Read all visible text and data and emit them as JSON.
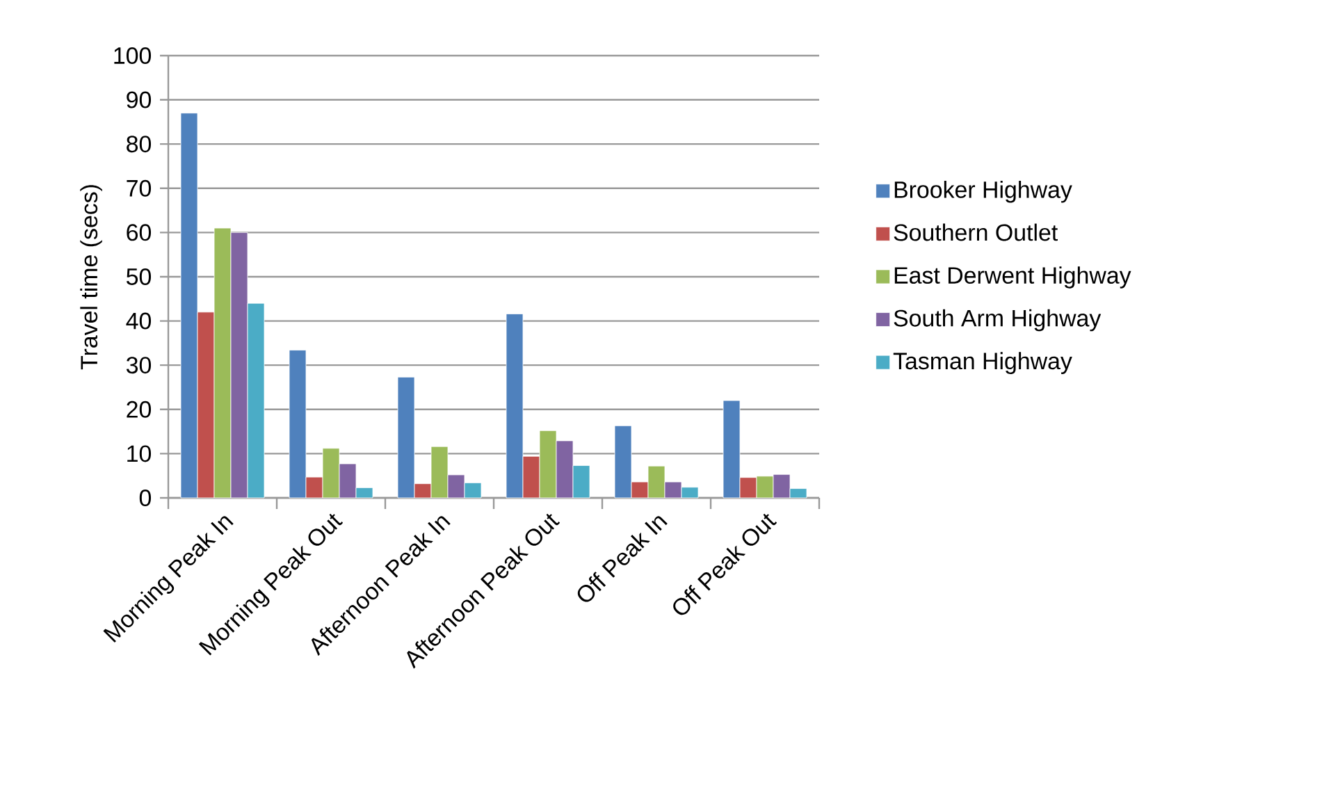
{
  "chart_data": {
    "type": "bar",
    "ylabel": "Travel time (secs)",
    "categories": [
      "Morning Peak In",
      "Morning Peak Out",
      "Afternoon Peak In",
      "Afternoon Peak Out",
      "Off Peak In",
      "Off Peak Out"
    ],
    "series": [
      {
        "name": "Brooker Highway",
        "color": "#4f81bd",
        "values": [
          87,
          33.4,
          27.3,
          41.6,
          16.3,
          22.0
        ]
      },
      {
        "name": "Southern Outlet",
        "color": "#c0504d",
        "values": [
          42,
          4.7,
          3.2,
          9.4,
          3.6,
          4.6
        ]
      },
      {
        "name": "East  Derwent Highway",
        "color": "#9bbb59",
        "values": [
          61,
          11.2,
          11.6,
          15.2,
          7.2,
          4.9
        ]
      },
      {
        "name": "South Arm Highway",
        "color": "#8064a2",
        "values": [
          60,
          7.7,
          5.2,
          12.9,
          3.6,
          5.3
        ]
      },
      {
        "name": "Tasman Highway",
        "color": "#4bacc6",
        "values": [
          44,
          2.3,
          3.4,
          7.3,
          2.4,
          2.1
        ]
      }
    ],
    "ylim": [
      0,
      100
    ],
    "yticks": [
      0,
      10,
      20,
      30,
      40,
      50,
      60,
      70,
      80,
      90,
      100
    ],
    "grid": "y",
    "legend": "right"
  }
}
